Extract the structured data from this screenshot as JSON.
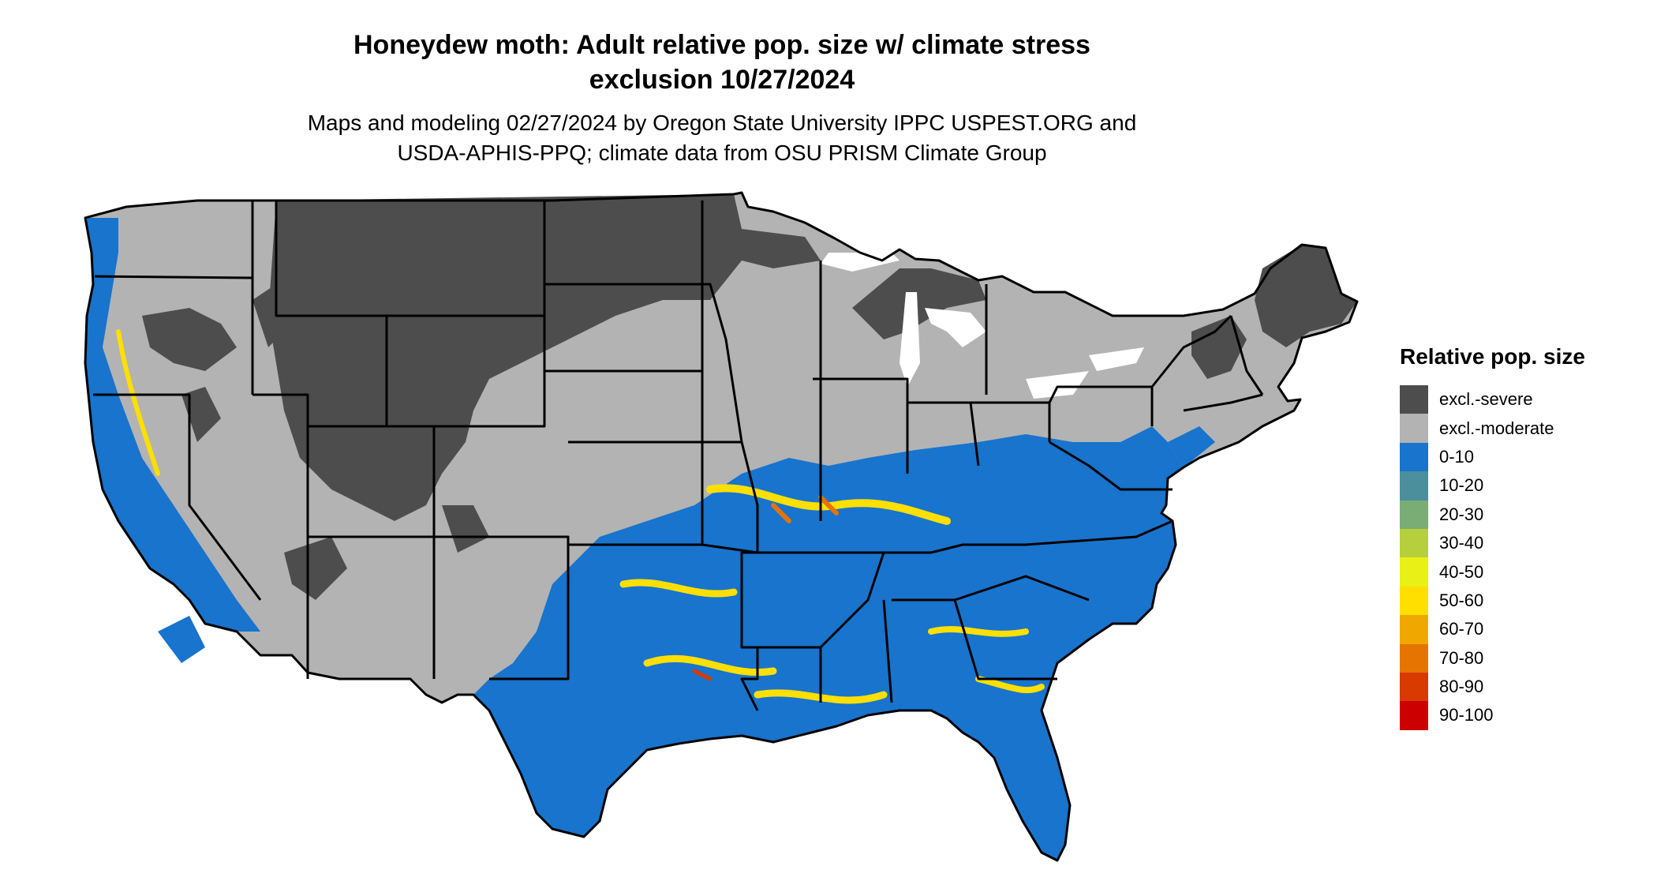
{
  "title": {
    "line1": "Honeydew moth: Adult relative pop. size w/ climate stress",
    "line2": "exclusion 10/27/2024"
  },
  "subtitle": {
    "line1": "Maps and modeling 02/27/2024 by Oregon State University IPPC USPEST.ORG and",
    "line2": "USDA-APHIS-PPQ; climate data from OSU PRISM Climate Group"
  },
  "legend": {
    "title": "Relative pop. size",
    "items": [
      {
        "label": "excl.-severe",
        "color": "#4d4d4d"
      },
      {
        "label": "excl.-moderate",
        "color": "#b3b3b3"
      },
      {
        "label": "0-10",
        "color": "#1874cd"
      },
      {
        "label": "10-20",
        "color": "#4a8f9b"
      },
      {
        "label": "20-30",
        "color": "#7aad75"
      },
      {
        "label": "30-40",
        "color": "#b6cf3c"
      },
      {
        "label": "40-50",
        "color": "#e8f016"
      },
      {
        "label": "50-60",
        "color": "#ffdf00"
      },
      {
        "label": "60-70",
        "color": "#f0a800"
      },
      {
        "label": "70-80",
        "color": "#e57500"
      },
      {
        "label": "80-90",
        "color": "#d83a00"
      },
      {
        "label": "90-100",
        "color": "#cc0000"
      }
    ]
  }
}
